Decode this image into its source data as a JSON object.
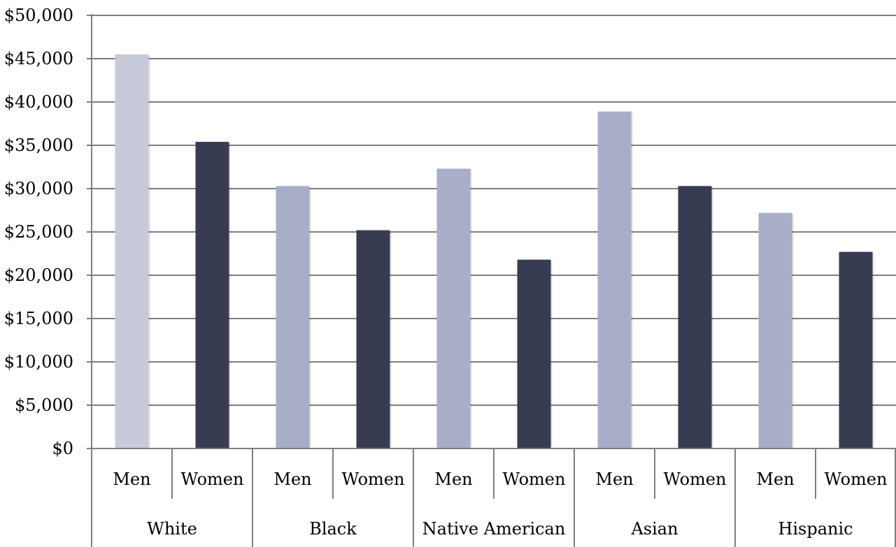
{
  "chart_data": {
    "type": "bar",
    "categories": [
      {
        "group": "White",
        "sub": "Men",
        "value": 45500,
        "color": "#c7cad9"
      },
      {
        "group": "White",
        "sub": "Women",
        "value": 35400,
        "color": "#383c53"
      },
      {
        "group": "Black",
        "sub": "Men",
        "value": 30300,
        "color": "#a9aec8"
      },
      {
        "group": "Black",
        "sub": "Women",
        "value": 25200,
        "color": "#383c53"
      },
      {
        "group": "Native American",
        "sub": "Men",
        "value": 32300,
        "color": "#a9aec8"
      },
      {
        "group": "Native American",
        "sub": "Women",
        "value": 21800,
        "color": "#383c53"
      },
      {
        "group": "Asian",
        "sub": "Men",
        "value": 38900,
        "color": "#a9aec8"
      },
      {
        "group": "Asian",
        "sub": "Women",
        "value": 30300,
        "color": "#383c53"
      },
      {
        "group": "Hispanic",
        "sub": "Men",
        "value": 27200,
        "color": "#a9aec8"
      },
      {
        "group": "Hispanic",
        "sub": "Women",
        "value": 22700,
        "color": "#383c53"
      }
    ],
    "groups": [
      "White",
      "Black",
      "Native American",
      "Asian",
      "Hispanic"
    ],
    "y_ticks": [
      "$0",
      "$5,000",
      "$10,000",
      "$15,000",
      "$20,000",
      "$25,000",
      "$30,000",
      "$35,000",
      "$40,000",
      "$45,000",
      "$50,000"
    ],
    "ylim": [
      0,
      50000
    ],
    "grid": true,
    "legend": "none",
    "title": "",
    "xlabel": "",
    "ylabel": ""
  }
}
